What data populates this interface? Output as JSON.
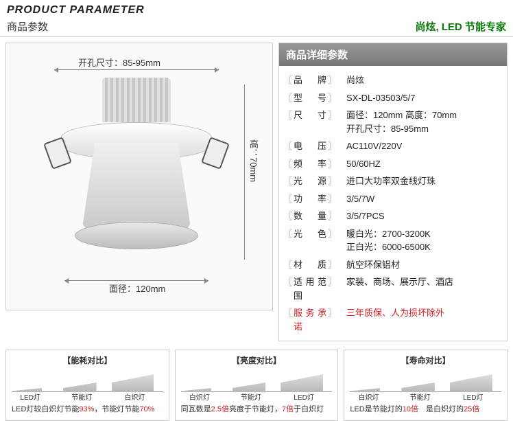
{
  "header": {
    "title_en": "PRODUCT PARAMETER",
    "title_cn": "商品参数",
    "brand_tag": "尚炫, LED 节能专家"
  },
  "diagram": {
    "cut_hole_label": "开孔尺寸：85-95mm",
    "height_label": "高：70mm",
    "diameter_label": "面径：120mm"
  },
  "spec_header": "商品详细参数",
  "specs": [
    {
      "label": "品　牌",
      "value": "尚炫"
    },
    {
      "label": "型　号",
      "value": "SX-DL-03503/5/7"
    },
    {
      "label": "尺　寸",
      "value": "面径：120mm 高度：70mm\n开孔尺寸：85-95mm"
    },
    {
      "label": "电　压",
      "value": "AC110V/220V"
    },
    {
      "label": "频　率",
      "value": "50/60HZ"
    },
    {
      "label": "光　源",
      "value": "进口大功率双金线灯珠"
    },
    {
      "label": "功　率",
      "value": "3/5/7W"
    },
    {
      "label": "数　量",
      "value": "3/5/7PCS"
    },
    {
      "label": "光　色",
      "value": "暖白光：2700-3200K\n正白光：6000-6500K"
    },
    {
      "label": "材　质",
      "value": "航空环保铝材"
    },
    {
      "label": "适用范围",
      "value": "家装、商场、展示厅、酒店"
    },
    {
      "label": "服务承诺",
      "value": "三年质保、人为损坏除外",
      "red": true
    }
  ],
  "comparison": {
    "boxes": [
      {
        "title": "【能耗对比】",
        "labels_order": [
          "LED灯",
          "节能灯",
          "白炽灯"
        ],
        "wedges": [
          {
            "left_pct": 2,
            "width_pct": 18,
            "h0": 2,
            "h1": 6
          },
          {
            "left_pct": 34,
            "width_pct": 22,
            "h0": 6,
            "h1": 14
          },
          {
            "left_pct": 66,
            "width_pct": 28,
            "h0": 14,
            "h1": 26
          }
        ],
        "caption_html": "LED灯较白炽灯节能<span class='hl'>93%</span>，节能灯节能<span class='hl'>70%</span>"
      },
      {
        "title": "【亮度对比】",
        "labels_order": [
          "白炽灯",
          "节能灯",
          "LED灯"
        ],
        "wedges": [
          {
            "left_pct": 2,
            "width_pct": 18,
            "h0": 2,
            "h1": 6
          },
          {
            "left_pct": 34,
            "width_pct": 22,
            "h0": 6,
            "h1": 14
          },
          {
            "left_pct": 66,
            "width_pct": 28,
            "h0": 14,
            "h1": 26
          }
        ],
        "caption_html": "同瓦数是<span class='hl'>2.5倍</span>亮度于节能灯，<span class='hl'>7倍</span>于白炽灯"
      },
      {
        "title": "【寿命对比】",
        "labels_order": [
          "白炽灯",
          "节能灯",
          "LED灯"
        ],
        "wedges": [
          {
            "left_pct": 2,
            "width_pct": 18,
            "h0": 2,
            "h1": 6
          },
          {
            "left_pct": 34,
            "width_pct": 22,
            "h0": 6,
            "h1": 14
          },
          {
            "left_pct": 66,
            "width_pct": 28,
            "h0": 14,
            "h1": 26
          }
        ],
        "caption_html": "LED是节能灯的<span class='hl'>10倍</span>　是白炽灯的<span class='hl'>25倍</span>"
      }
    ]
  },
  "colors": {
    "brand_green": "#0a7a0a",
    "accent_red": "#d02020",
    "spec_header_bg_top": "#999999",
    "spec_header_bg_bottom": "#777777",
    "border": "#cccccc"
  }
}
